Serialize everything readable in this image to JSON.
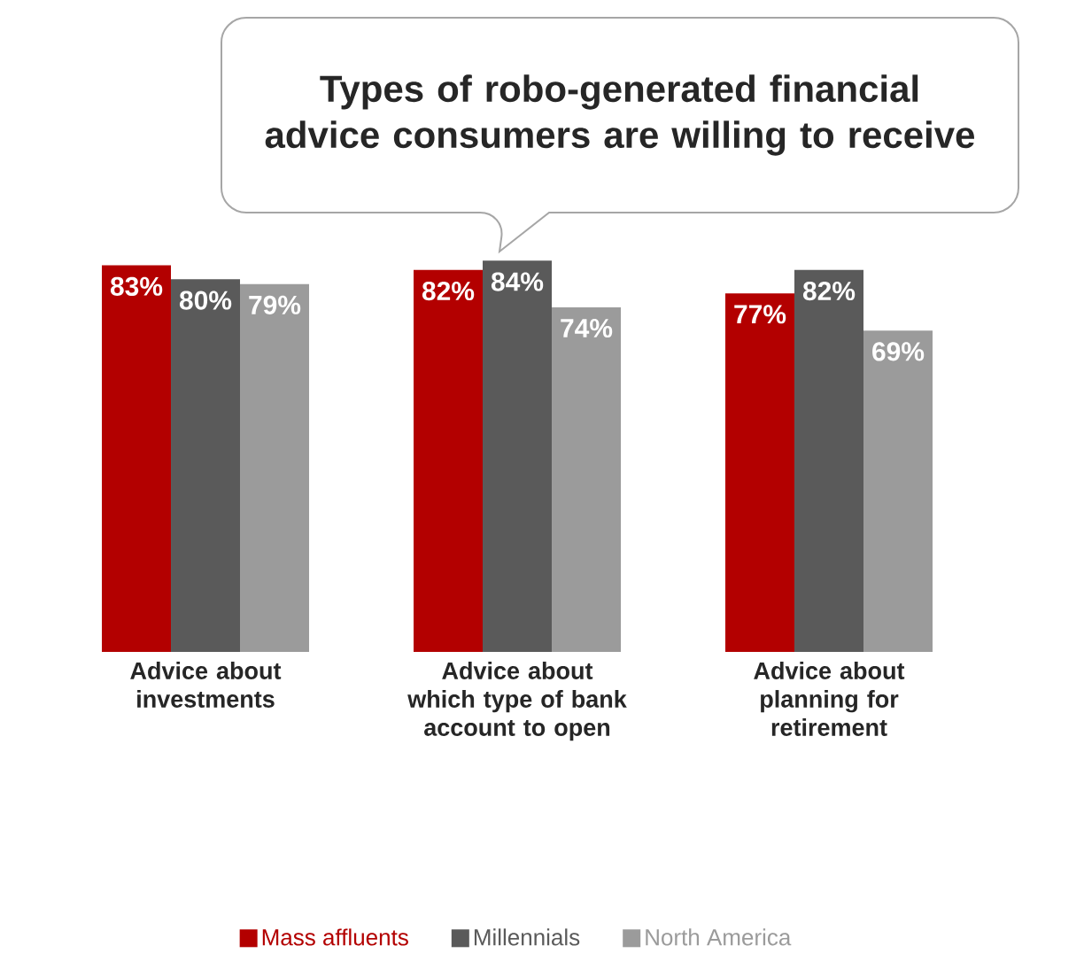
{
  "chart_data": {
    "type": "bar",
    "title": "Types of robo-generated financial advice consumers are willing to receive",
    "categories": [
      "Advice about investments",
      "Advice about which type of bank account to open",
      "Advice about planning for retirement"
    ],
    "series": [
      {
        "name": "Mass affluents",
        "color": "#b30000",
        "values": [
          83,
          82,
          77
        ],
        "value_labels": [
          "83%",
          "82%",
          "77%"
        ]
      },
      {
        "name": "Millennials",
        "color": "#5a5a5a",
        "values": [
          80,
          84,
          82
        ],
        "value_labels": [
          "80%",
          "84%",
          "82%"
        ]
      },
      {
        "name": "North America",
        "color": "#9b9b9b",
        "values": [
          79,
          74,
          69
        ],
        "value_labels": [
          "79%",
          "74%",
          "69%"
        ]
      }
    ],
    "legend": "bottom"
  }
}
